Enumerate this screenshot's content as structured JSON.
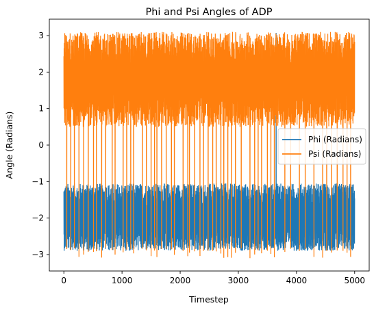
{
  "chart_data": {
    "type": "line",
    "title": "Phi and Psi Angles of ADP",
    "xlabel": "Timestep",
    "ylabel": "Angle (Radians)",
    "xlim": [
      -250,
      5250
    ],
    "ylim": [
      -3.45,
      3.45
    ],
    "xticks": [
      0,
      1000,
      2000,
      3000,
      4000,
      5000
    ],
    "yticks": [
      -3,
      -2,
      -1,
      0,
      1,
      2,
      3
    ],
    "x_range": [
      0,
      5000
    ],
    "legend_position": "center-right",
    "grid": false,
    "series": [
      {
        "name": "Phi (Radians)",
        "color": "#1f77b4",
        "band_low": -2.9,
        "band_high": -1.05,
        "spikes_x": [
          3650
        ],
        "spike_high": 3.1
      },
      {
        "name": "Psi (Radians)",
        "color": "#ff7f0e",
        "band_low": 0.5,
        "band_high": 3.1,
        "spikes_x": [
          50,
          120,
          180,
          260,
          340,
          420,
          510,
          560,
          650,
          720,
          830,
          880,
          1020,
          1080,
          1150,
          1200,
          1350,
          1420,
          1500,
          1560,
          1600,
          1680,
          1760,
          1850,
          1900,
          2050,
          2130,
          2160,
          2250,
          2340,
          2400,
          2480,
          2560,
          2620,
          2700,
          2750,
          2820,
          2880,
          2950,
          3050,
          3200,
          3280,
          3340,
          3400,
          3500,
          3560,
          3620,
          3800,
          3900,
          4050,
          4150,
          4300,
          4450,
          4520,
          4600,
          4700,
          4800,
          4870,
          4930
        ],
        "spike_low": -3.1
      }
    ]
  }
}
